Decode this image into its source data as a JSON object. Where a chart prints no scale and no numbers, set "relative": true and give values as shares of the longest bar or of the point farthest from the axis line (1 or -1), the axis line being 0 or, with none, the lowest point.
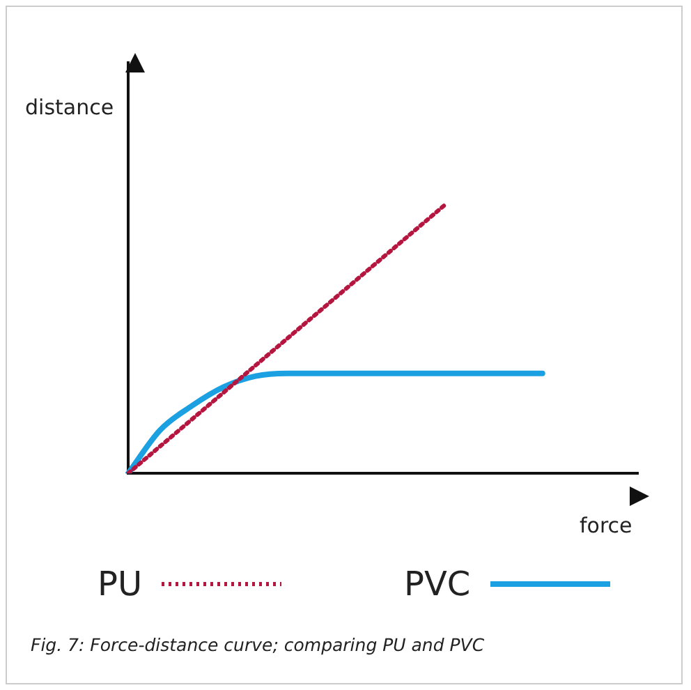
{
  "chart_data": {
    "type": "line",
    "relative": true,
    "xlabel": "force",
    "ylabel": "distance",
    "legend": "bottom",
    "grid": false,
    "marker": "none",
    "categories": [
      null,
      null,
      null,
      null,
      null,
      null,
      null,
      null,
      null,
      null,
      null,
      null,
      null,
      null,
      null,
      null,
      null
    ],
    "series": [
      {
        "name": "PU",
        "color": "#b5163f",
        "line_style": "dotted",
        "values": [
          0,
          0.1,
          0.2,
          0.3,
          0.4,
          0.5,
          0.6,
          0.7,
          0.8,
          0.9,
          1,
          null,
          null,
          null,
          null,
          null,
          null
        ]
      },
      {
        "name": "PVC",
        "color": "#1ba1e2",
        "line_style": "solid",
        "values": [
          0,
          0.16,
          0.25,
          0.32,
          0.36,
          0.37,
          0.37,
          0.37,
          0.37,
          0.37,
          0.37,
          0.37,
          0.37,
          0.37,
          null,
          null,
          null
        ]
      }
    ],
    "annotations": [
      "Fig. 7: Force-distance curve; comparing PU and PVC"
    ]
  }
}
